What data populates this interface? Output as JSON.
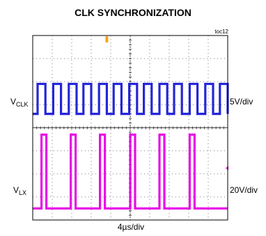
{
  "chart_data": {
    "type": "line",
    "title": "CLK SYNCHRONIZATION",
    "figure_id": "toc12",
    "xlabel": "4µs/div",
    "grid": true,
    "x_divisions": 10,
    "y_divisions": 8,
    "channels": [
      {
        "label_main": "V",
        "label_sub": "CLK",
        "scale": "5V/div",
        "color": "#1a1ad6",
        "level_low_div": 4.6,
        "level_high_div": 5.9,
        "rising_edges_div": [
          0.25,
          1.05,
          1.85,
          2.6,
          3.4,
          4.15,
          4.95,
          5.7,
          6.5,
          7.25,
          8.05,
          8.85,
          9.6
        ],
        "high_width_div": 0.4
      },
      {
        "label_main": "V",
        "label_sub": "LX",
        "scale": "20V/div",
        "color": "#e600e6",
        "level_low_div": 0.5,
        "level_high_div": 3.7,
        "rising_edges_div": [
          0.45,
          1.95,
          3.45,
          5.0,
          6.5,
          8.05
        ],
        "high_width_div": 0.25
      }
    ],
    "markers": [
      {
        "type": "trigger",
        "color": "#f4a21c",
        "x_div": 3.8
      },
      {
        "type": "ground",
        "color": "#e600e6",
        "y_div": 2.25
      }
    ]
  }
}
